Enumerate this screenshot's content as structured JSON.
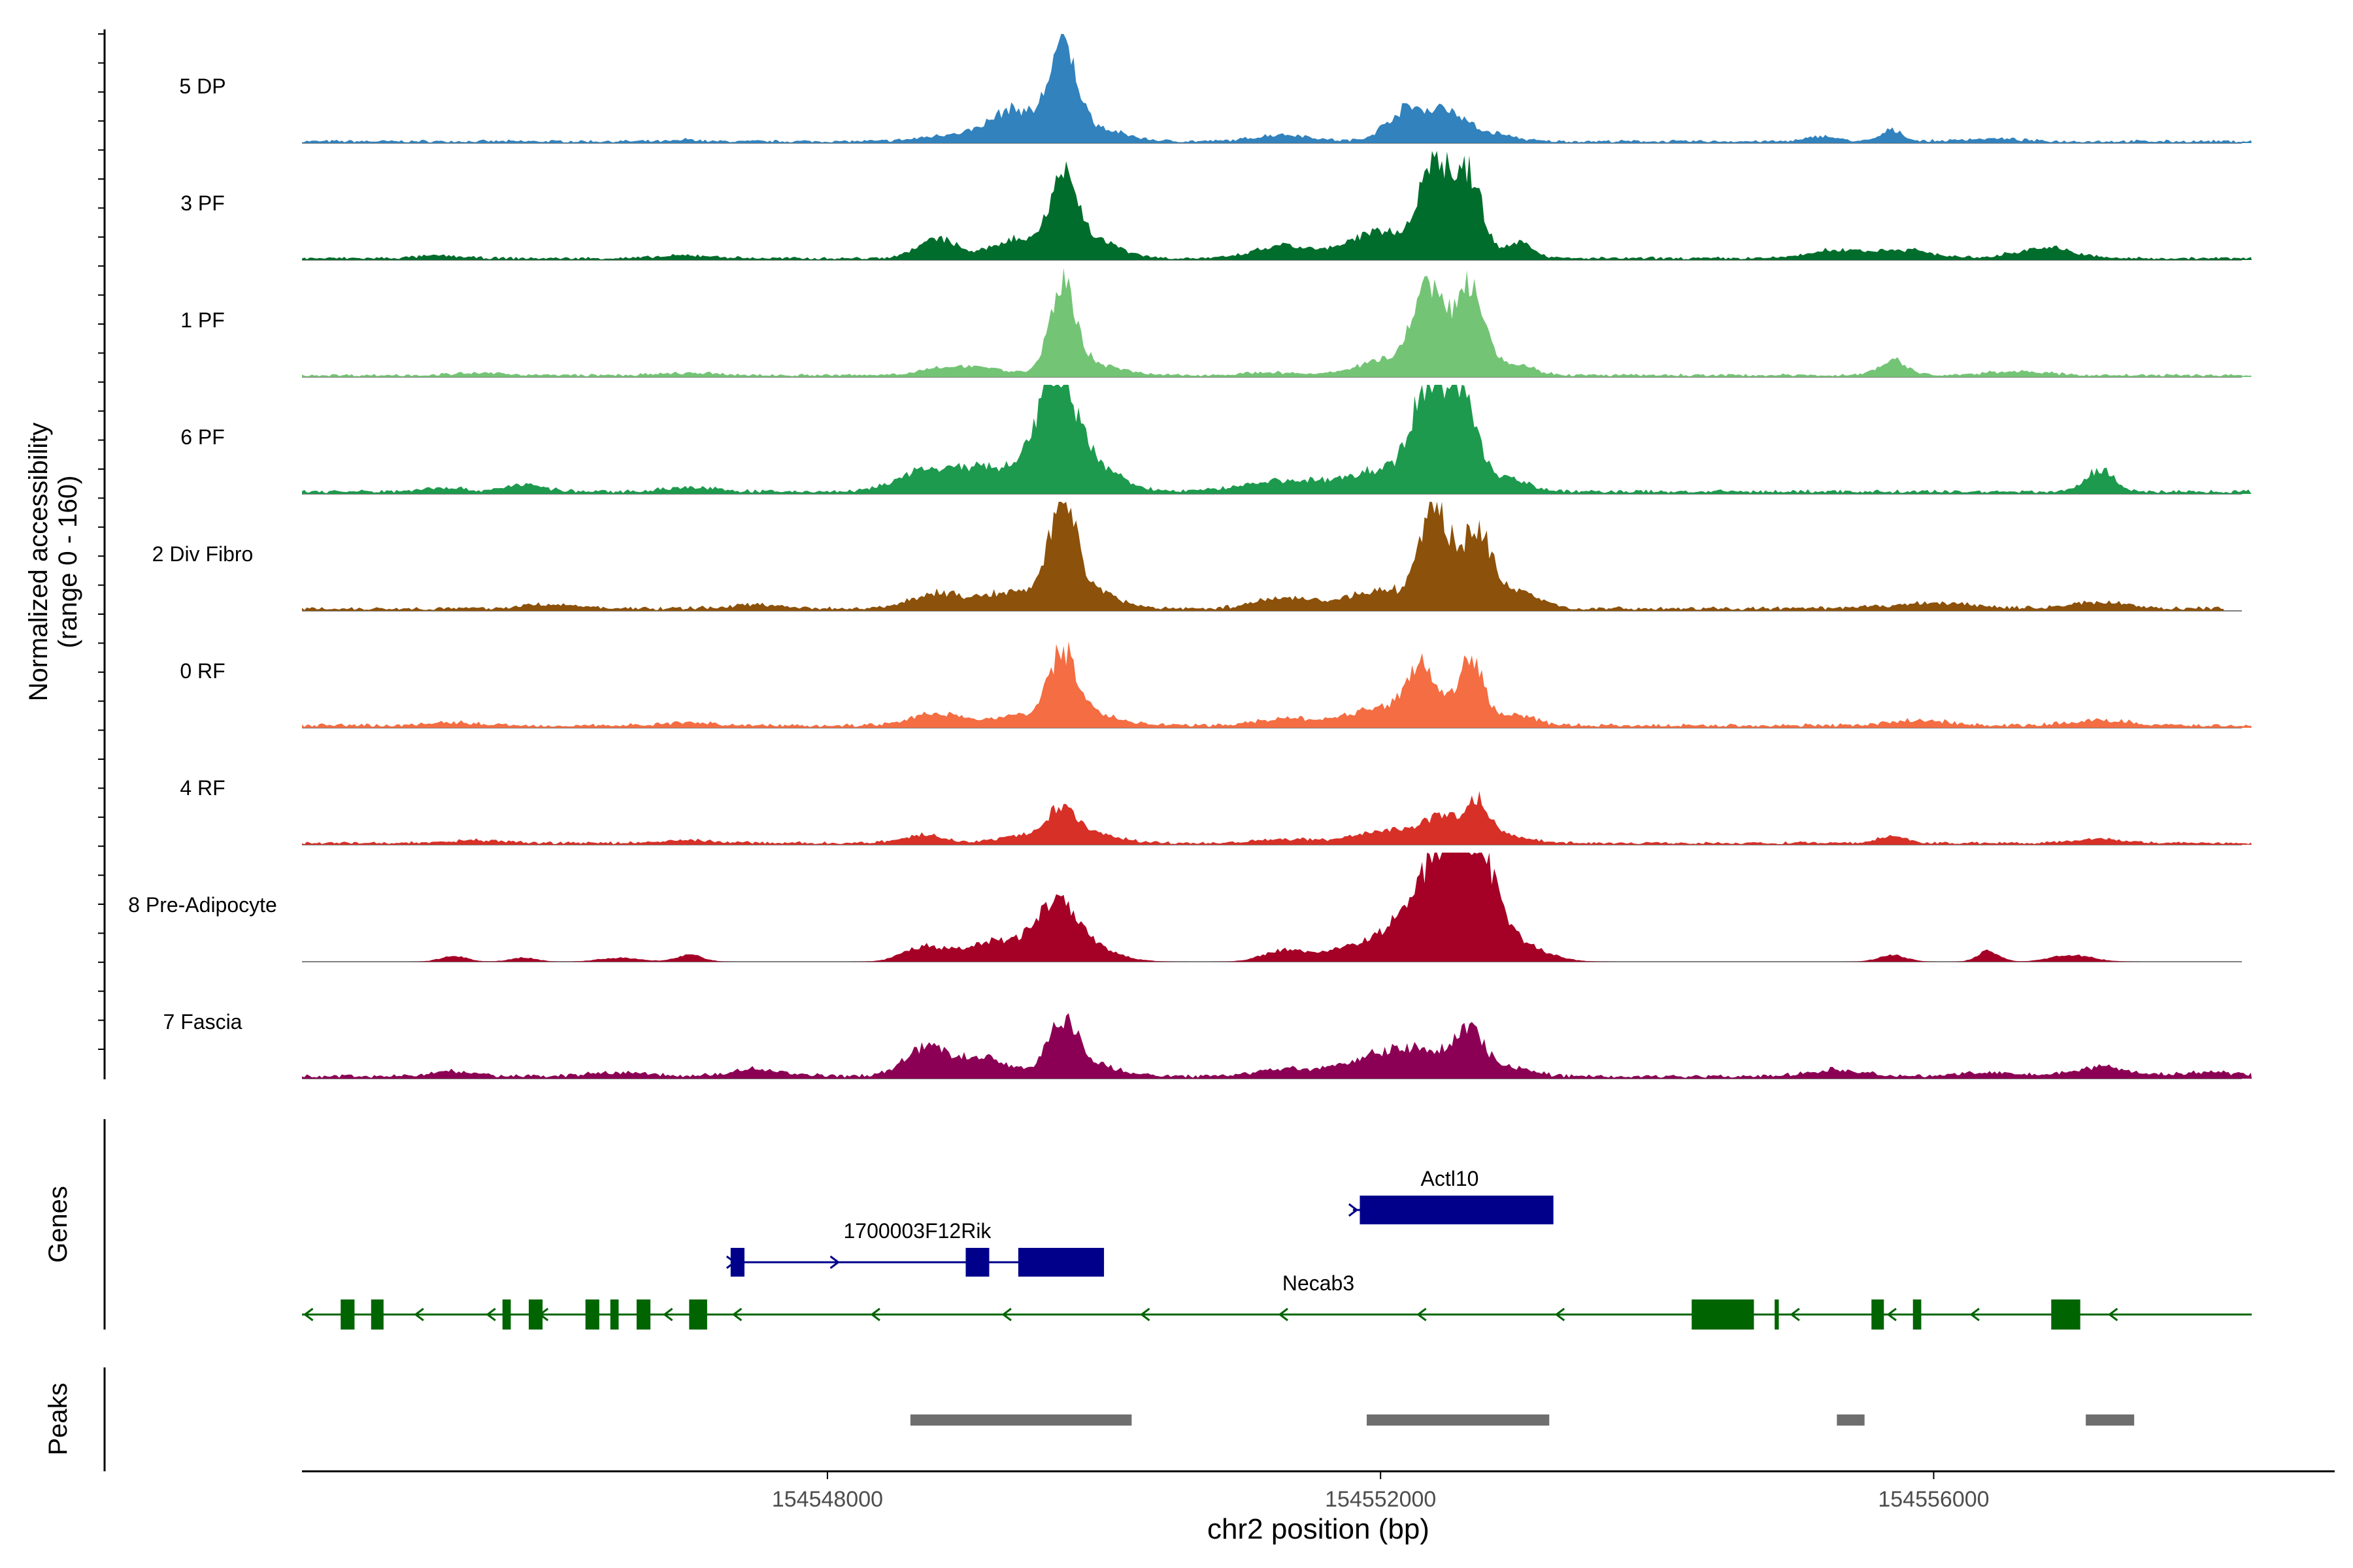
{
  "chart_data": {
    "type": "area",
    "xlabel": "chr2 position (bp)",
    "ylabel_line1": "Normalized accessibility",
    "ylabel_line2": "(range 0 - 160)",
    "y_range": [
      0,
      160
    ],
    "x_range": [
      154544200,
      154558900
    ],
    "x_ticks": [
      154548000,
      154552000,
      154556000
    ],
    "x_tick_labels": [
      "154548000",
      "154552000",
      "154556000"
    ],
    "genes_label": "Genes",
    "peaks_label": "Peaks",
    "tracks": [
      {
        "name": "5 DP",
        "color": "#3182bd",
        "start": 154544200,
        "end": 154558300,
        "bg": 3,
        "peaks": [
          [
            154547000,
            3,
            60
          ],
          [
            154549000,
            12,
            250
          ],
          [
            154549350,
            42,
            150
          ],
          [
            154549700,
            128,
            100
          ],
          [
            154549900,
            20,
            220
          ],
          [
            154551300,
            10,
            200
          ],
          [
            154552200,
            48,
            150
          ],
          [
            154552500,
            40,
            120
          ],
          [
            154552800,
            12,
            150
          ],
          [
            154555200,
            8,
            100
          ],
          [
            154555700,
            16,
            80
          ],
          [
            154556400,
            4,
            200
          ]
        ]
      },
      {
        "name": "3 PF",
        "color": "#006d2c",
        "start": 154544200,
        "end": 154558300,
        "bg": 3,
        "peaks": [
          [
            154545200,
            4,
            150
          ],
          [
            154547000,
            4,
            200
          ],
          [
            154548800,
            28,
            150
          ],
          [
            154549350,
            28,
            150
          ],
          [
            154549700,
            110,
            100
          ],
          [
            154549900,
            28,
            200
          ],
          [
            154551300,
            18,
            200
          ],
          [
            154552000,
            40,
            220
          ],
          [
            154552400,
            145,
            110
          ],
          [
            154552650,
            115,
            90
          ],
          [
            154553000,
            25,
            100
          ],
          [
            154555300,
            12,
            200
          ],
          [
            154555800,
            12,
            200
          ],
          [
            154556800,
            16,
            200
          ]
        ]
      },
      {
        "name": "1 PF",
        "color": "#74c476",
        "start": 154544200,
        "end": 154558300,
        "bg": 3,
        "peaks": [
          [
            154545500,
            3,
            200
          ],
          [
            154547000,
            3,
            200
          ],
          [
            154549000,
            14,
            250
          ],
          [
            154549700,
            128,
            90
          ],
          [
            154549900,
            18,
            200
          ],
          [
            154551200,
            4,
            200
          ],
          [
            154552050,
            24,
            200
          ],
          [
            154552350,
            128,
            110
          ],
          [
            154552650,
            135,
            100
          ],
          [
            154552950,
            16,
            150
          ],
          [
            154555700,
            22,
            100
          ],
          [
            154556600,
            6,
            200
          ]
        ]
      },
      {
        "name": "6 PF",
        "color": "#1d9a4d",
        "start": 154544200,
        "end": 154558300,
        "bg": 4,
        "peaks": [
          [
            154545200,
            6,
            150
          ],
          [
            154545800,
            10,
            150
          ],
          [
            154547000,
            6,
            200
          ],
          [
            154548700,
            28,
            200
          ],
          [
            154549200,
            35,
            250
          ],
          [
            154549650,
            155,
            130
          ],
          [
            154549900,
            40,
            200
          ],
          [
            154551300,
            16,
            300
          ],
          [
            154552000,
            30,
            250
          ],
          [
            154552350,
            150,
            120
          ],
          [
            154552600,
            130,
            100
          ],
          [
            154552900,
            22,
            150
          ],
          [
            154557200,
            32,
            100
          ]
        ]
      },
      {
        "name": "2 Div Fibro",
        "color": "#8c510a",
        "start": 154544200,
        "end": 154558100,
        "bg": 4,
        "peaks": [
          [
            154546000,
            6,
            200
          ],
          [
            154547500,
            6,
            200
          ],
          [
            154548800,
            22,
            200
          ],
          [
            154549350,
            24,
            200
          ],
          [
            154549700,
            145,
            100
          ],
          [
            154549900,
            24,
            200
          ],
          [
            154551300,
            16,
            200
          ],
          [
            154552000,
            26,
            250
          ],
          [
            154552400,
            140,
            110
          ],
          [
            154552700,
            115,
            100
          ],
          [
            154553000,
            24,
            150
          ],
          [
            154556000,
            8,
            300
          ],
          [
            154557200,
            10,
            200
          ]
        ]
      },
      {
        "name": "0 RF",
        "color": "#f46d43",
        "start": 154544200,
        "end": 154558300,
        "bg": 4,
        "peaks": [
          [
            154545300,
            4,
            200
          ],
          [
            154547000,
            4,
            200
          ],
          [
            154548800,
            18,
            200
          ],
          [
            154549350,
            14,
            150
          ],
          [
            154549700,
            100,
            100
          ],
          [
            154549900,
            18,
            200
          ],
          [
            154551300,
            10,
            200
          ],
          [
            154552000,
            24,
            250
          ],
          [
            154552300,
            78,
            110
          ],
          [
            154552650,
            95,
            90
          ],
          [
            154552950,
            16,
            150
          ],
          [
            154555900,
            8,
            200
          ],
          [
            154557200,
            8,
            200
          ]
        ]
      },
      {
        "name": "4 RF",
        "color": "#d73027",
        "start": 154544200,
        "end": 154558300,
        "bg": 3,
        "peaks": [
          [
            154545500,
            4,
            200
          ],
          [
            154547000,
            4,
            200
          ],
          [
            154548700,
            12,
            150
          ],
          [
            154549400,
            12,
            150
          ],
          [
            154549700,
            48,
            100
          ],
          [
            154549900,
            14,
            200
          ],
          [
            154551300,
            6,
            200
          ],
          [
            154552100,
            20,
            250
          ],
          [
            154552450,
            32,
            120
          ],
          [
            154552700,
            60,
            90
          ],
          [
            154552950,
            10,
            150
          ],
          [
            154555700,
            10,
            100
          ],
          [
            154557200,
            6,
            200
          ]
        ]
      },
      {
        "name": "8 Pre-Adipocyte",
        "color": "#a50026",
        "start": 154544200,
        "end": 154558300,
        "bg": 0,
        "peaks": [
          [
            154545300,
            8,
            100
          ],
          [
            154545800,
            6,
            100
          ],
          [
            154546500,
            6,
            150
          ],
          [
            154547000,
            10,
            100
          ],
          [
            154548700,
            22,
            150
          ],
          [
            154549200,
            30,
            200
          ],
          [
            154549650,
            78,
            150
          ],
          [
            154549900,
            18,
            200
          ],
          [
            154551300,
            16,
            150
          ],
          [
            154551900,
            26,
            250
          ],
          [
            154552450,
            155,
            220
          ],
          [
            154552700,
            90,
            150
          ],
          [
            154553000,
            22,
            200
          ],
          [
            154555700,
            10,
            100
          ],
          [
            154556400,
            16,
            80
          ],
          [
            154557000,
            10,
            150
          ]
        ]
      },
      {
        "name": "7 Fascia",
        "color": "#8b0054",
        "start": 154544200,
        "end": 154558300,
        "bg": 4,
        "peaks": [
          [
            154545300,
            8,
            150
          ],
          [
            154546500,
            6,
            200
          ],
          [
            154547500,
            10,
            200
          ],
          [
            154548700,
            40,
            150
          ],
          [
            154549100,
            28,
            200
          ],
          [
            154549700,
            72,
            110
          ],
          [
            154549900,
            16,
            200
          ],
          [
            154551300,
            10,
            200
          ],
          [
            154551900,
            20,
            250
          ],
          [
            154552300,
            36,
            250
          ],
          [
            154552650,
            56,
            100
          ],
          [
            154552950,
            12,
            150
          ],
          [
            154555300,
            10,
            200
          ],
          [
            154556400,
            6,
            200
          ],
          [
            154557200,
            14,
            200
          ],
          [
            154558000,
            6,
            200
          ]
        ]
      }
    ],
    "genes": [
      {
        "name": "1700003F12Rik",
        "color": "#00008b",
        "strand": "+",
        "start": 154547300,
        "end": 154550000,
        "exons": [
          [
            154547300,
            154547400
          ],
          [
            154549000,
            154549170
          ],
          [
            154549380,
            154550000
          ]
        ],
        "chevrons": [
          154547300,
          154548050
        ]
      },
      {
        "name": "Actl10",
        "color": "#00008b",
        "strand": "+",
        "start": 154551800,
        "end": 154553200,
        "exons": [
          [
            154551850,
            154553250
          ]
        ],
        "chevrons": [
          154551800
        ]
      },
      {
        "name": "Necab3",
        "color": "#006400",
        "strand": "-",
        "start": 154544200,
        "end": 154558300,
        "exons": [
          [
            154544480,
            154544580
          ],
          [
            154544700,
            154544790
          ],
          [
            154545650,
            154545710
          ],
          [
            154545840,
            154545940
          ],
          [
            154546250,
            154546350
          ],
          [
            154546430,
            154546490
          ],
          [
            154546620,
            154546720
          ],
          [
            154547000,
            154547130
          ],
          [
            154554250,
            154554700
          ],
          [
            154554850,
            154554880
          ],
          [
            154555550,
            154555640
          ],
          [
            154555850,
            154555910
          ],
          [
            154556850,
            154557060
          ]
        ],
        "chevrons": [
          154544250,
          154545050,
          154545570,
          154545950,
          154546850,
          154547350,
          154548350,
          154549300,
          154550300,
          154551300,
          154552300,
          154553300,
          154554300,
          154555000,
          154555700,
          154556300,
          154557300
        ]
      }
    ],
    "peak_regions": [
      [
        154548600,
        154550200
      ],
      [
        154551900,
        154553220
      ],
      [
        154555300,
        154555500
      ],
      [
        154557100,
        154557450
      ]
    ],
    "peak_color": "#6e6e6e"
  }
}
